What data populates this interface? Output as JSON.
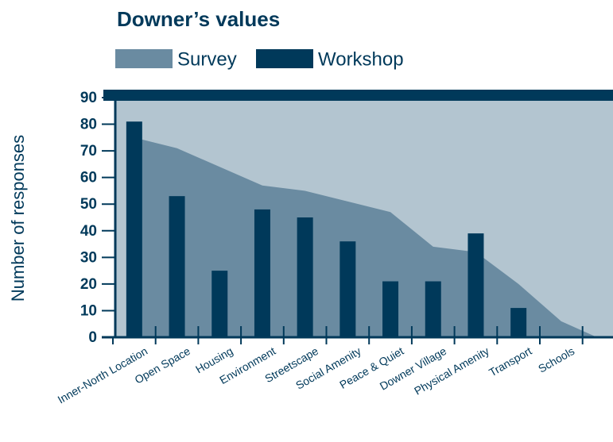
{
  "chart_data": {
    "type": "bar_area",
    "title": "Downer’s values",
    "ylabel": "Number of responses",
    "categories": [
      "Inner-North Location",
      "Open Space",
      "Housing",
      "Environment",
      "Streetscape",
      "Social Amenity",
      "Peace & Quiet",
      "Downer Village",
      "Physical Amenity",
      "Transport",
      "Schools"
    ],
    "series": [
      {
        "name": "Survey",
        "color": "#6a8ba1",
        "values": [
          75,
          71,
          64,
          57,
          55,
          51,
          47,
          34,
          32,
          20,
          6
        ]
      },
      {
        "name": "Workshop",
        "color": "#00395a",
        "values": [
          81,
          53,
          25,
          48,
          45,
          36,
          21,
          21,
          39,
          11,
          0
        ]
      }
    ],
    "ylim": [
      0,
      90
    ],
    "yticks": [
      0,
      10,
      20,
      30,
      40,
      50,
      60,
      70,
      80,
      90
    ]
  }
}
